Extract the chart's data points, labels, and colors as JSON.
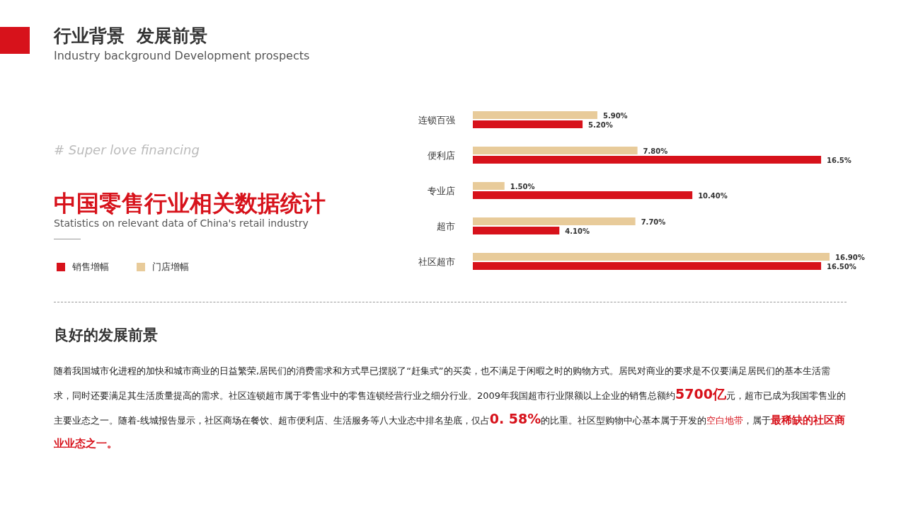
{
  "chart_data": {
    "type": "bar",
    "orientation": "horizontal",
    "title": "中国零售行业相关数据统计",
    "subtitle": "Statistics on relevant data of China's retail industry",
    "categories": [
      "连锁百强",
      "便利店",
      "专业店",
      "超市",
      "社区超市"
    ],
    "series": [
      {
        "name": "销售增幅",
        "color": "#d7121b",
        "values": [
          5.2,
          16.5,
          10.4,
          4.1,
          16.5
        ],
        "value_labels": [
          "5.20%",
          "16.5%",
          "10.40%",
          "4.10%",
          "16.50%"
        ]
      },
      {
        "name": "门店增幅",
        "color": "#e8cb9a",
        "values": [
          5.9,
          7.8,
          1.5,
          7.7,
          16.9
        ],
        "value_labels": [
          "5.90%",
          "7.80%",
          "1.50%",
          "7.70%",
          "16.90%"
        ]
      }
    ],
    "legend": "left",
    "annotations": [
      "行业背景  发展前景",
      "Industry background Development prospects",
      "# Super love financing",
      "良好的发展前景",
      "随着我国城市化进程的加快和城市商业的日益繁荣,居民们的消费需求和方式早已摆脱了“赶集式”的买卖，也不满足于闲暇之时的购物方式。居民对商业的要求是不仅要满足居民们的基本生活需求，同时还要满足其生活质量提高的需求。社区连锁超市属于零售业中的零售连锁经营行业之细分行业。2009年我国超市行业限额以上企业的销售总额约",
      "5700亿",
      "元，超市已成为我国零售业的主要业态之一。随着-线城报告显示，社区商场在餐饮、超市便利店、生活服务等八大业态中排名垫底，仅占",
      "0. 58%",
      "的比重。社区型购物中心基本属于开发的",
      "空白地带",
      "，属于",
      "最稀缺的社区商业业态之一。"
    ]
  }
}
